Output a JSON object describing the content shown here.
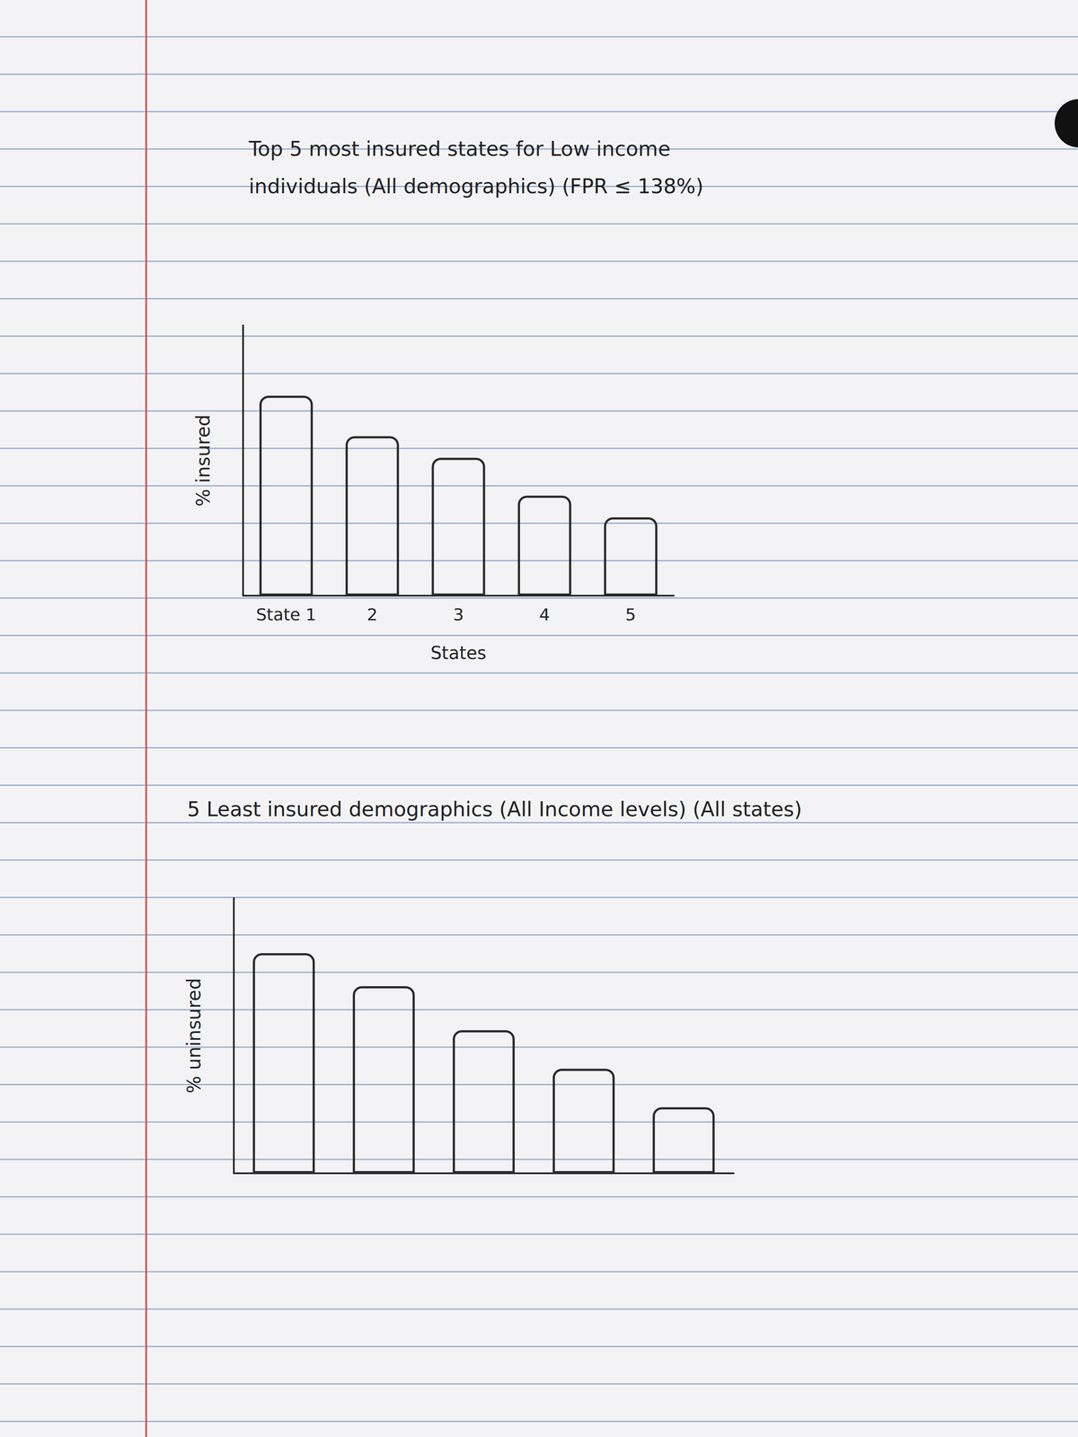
{
  "chart_data": [
    {
      "type": "bar",
      "title": "Top 5 most insured states for Low income individuals (All demographics) (FPR ≤ 138%)",
      "x_label": "States",
      "y_label": "% insured",
      "categories": [
        "State 1",
        "2",
        "3",
        "4",
        "5"
      ],
      "values": [
        74,
        59,
        51,
        37,
        29
      ],
      "color": "#2b2b2b",
      "ylim": [
        0,
        100
      ],
      "grid": false,
      "tick_labels": "x"
    },
    {
      "type": "bar",
      "title": "5 Least insured demographics (All Income levels) (All states)",
      "y_label": "% uninsured",
      "categories": [
        null,
        null,
        null,
        null,
        null
      ],
      "values": [
        80,
        68,
        52,
        38,
        24
      ],
      "color": "#2b2b2b",
      "ylim": [
        0,
        100
      ],
      "grid": false,
      "tick_labels": false
    }
  ]
}
